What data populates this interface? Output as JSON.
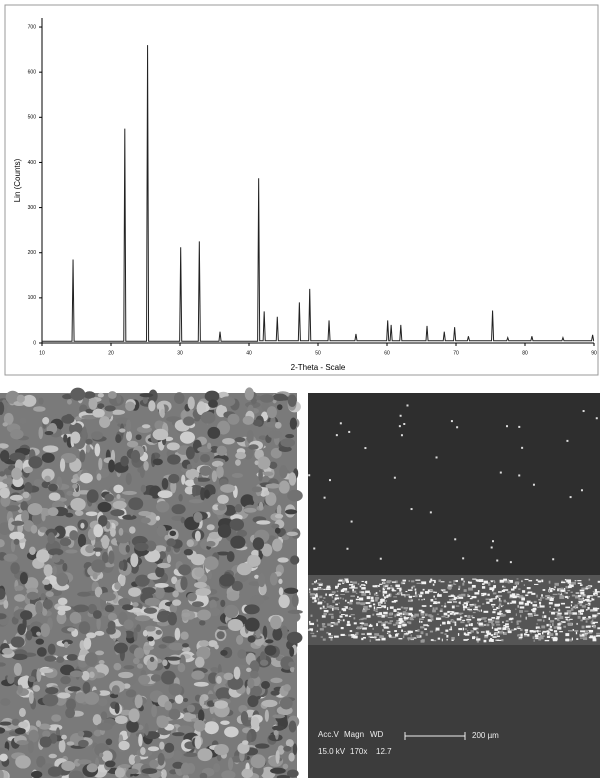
{
  "chart_data": {
    "type": "line",
    "x_label": "2-Theta - Scale",
    "y_label": "Lin (Counts)",
    "color": "#222222",
    "x": [
      10,
      14.35,
      14.5,
      14.65,
      21.85,
      22,
      22.15,
      25.15,
      25.3,
      25.45,
      29.95,
      30.1,
      30.25,
      32.65,
      32.8,
      32.95,
      35.65,
      35.8,
      35.95,
      41.25,
      41.4,
      41.55,
      42.05,
      42.2,
      42.35,
      43.95,
      44.1,
      44.25,
      47.15,
      47.3,
      47.45,
      48.65,
      48.8,
      48.95,
      51.45,
      51.6,
      51.75,
      55.35,
      55.5,
      55.65,
      59.95,
      60.1,
      60.25,
      60.45,
      60.6,
      60.75,
      61.85,
      62,
      62.15,
      65.65,
      65.8,
      65.95,
      68.15,
      68.3,
      68.45,
      69.65,
      69.8,
      69.95,
      71.65,
      71.8,
      71.95,
      75.15,
      75.3,
      75.45,
      77.35,
      77.5,
      77.65,
      80.85,
      81,
      81.15,
      85.35,
      85.5,
      85.65,
      89.65,
      89.8,
      89.95,
      90
    ],
    "values": [
      4,
      4,
      185,
      4,
      4,
      475,
      4,
      4,
      660,
      4,
      4,
      212,
      4,
      4,
      225,
      4,
      4,
      25,
      4,
      4,
      365,
      5,
      5,
      70,
      5,
      5,
      58,
      5,
      5,
      90,
      5,
      5,
      120,
      5,
      5,
      50,
      5,
      5,
      20,
      5,
      5,
      50,
      5,
      5,
      40,
      5,
      5,
      40,
      5,
      5,
      38,
      5,
      5,
      25,
      5,
      5,
      35,
      5,
      5,
      15,
      5,
      5,
      72,
      5,
      5,
      12,
      5,
      5,
      15,
      5,
      5,
      12,
      5,
      5,
      18,
      5,
      5
    ],
    "xlim": [
      10,
      90
    ],
    "xticks": [
      10,
      20,
      30,
      40,
      50,
      60,
      70,
      80,
      90
    ],
    "ylim": [
      0,
      720
    ],
    "yticks": [
      0,
      100,
      200,
      300,
      400,
      500,
      600,
      700
    ]
  },
  "sem_image": {
    "labels": [
      "Acc.V",
      "Magn",
      "WD",
      "200 µm",
      "15.0 kV",
      "170x",
      "12.7"
    ]
  }
}
